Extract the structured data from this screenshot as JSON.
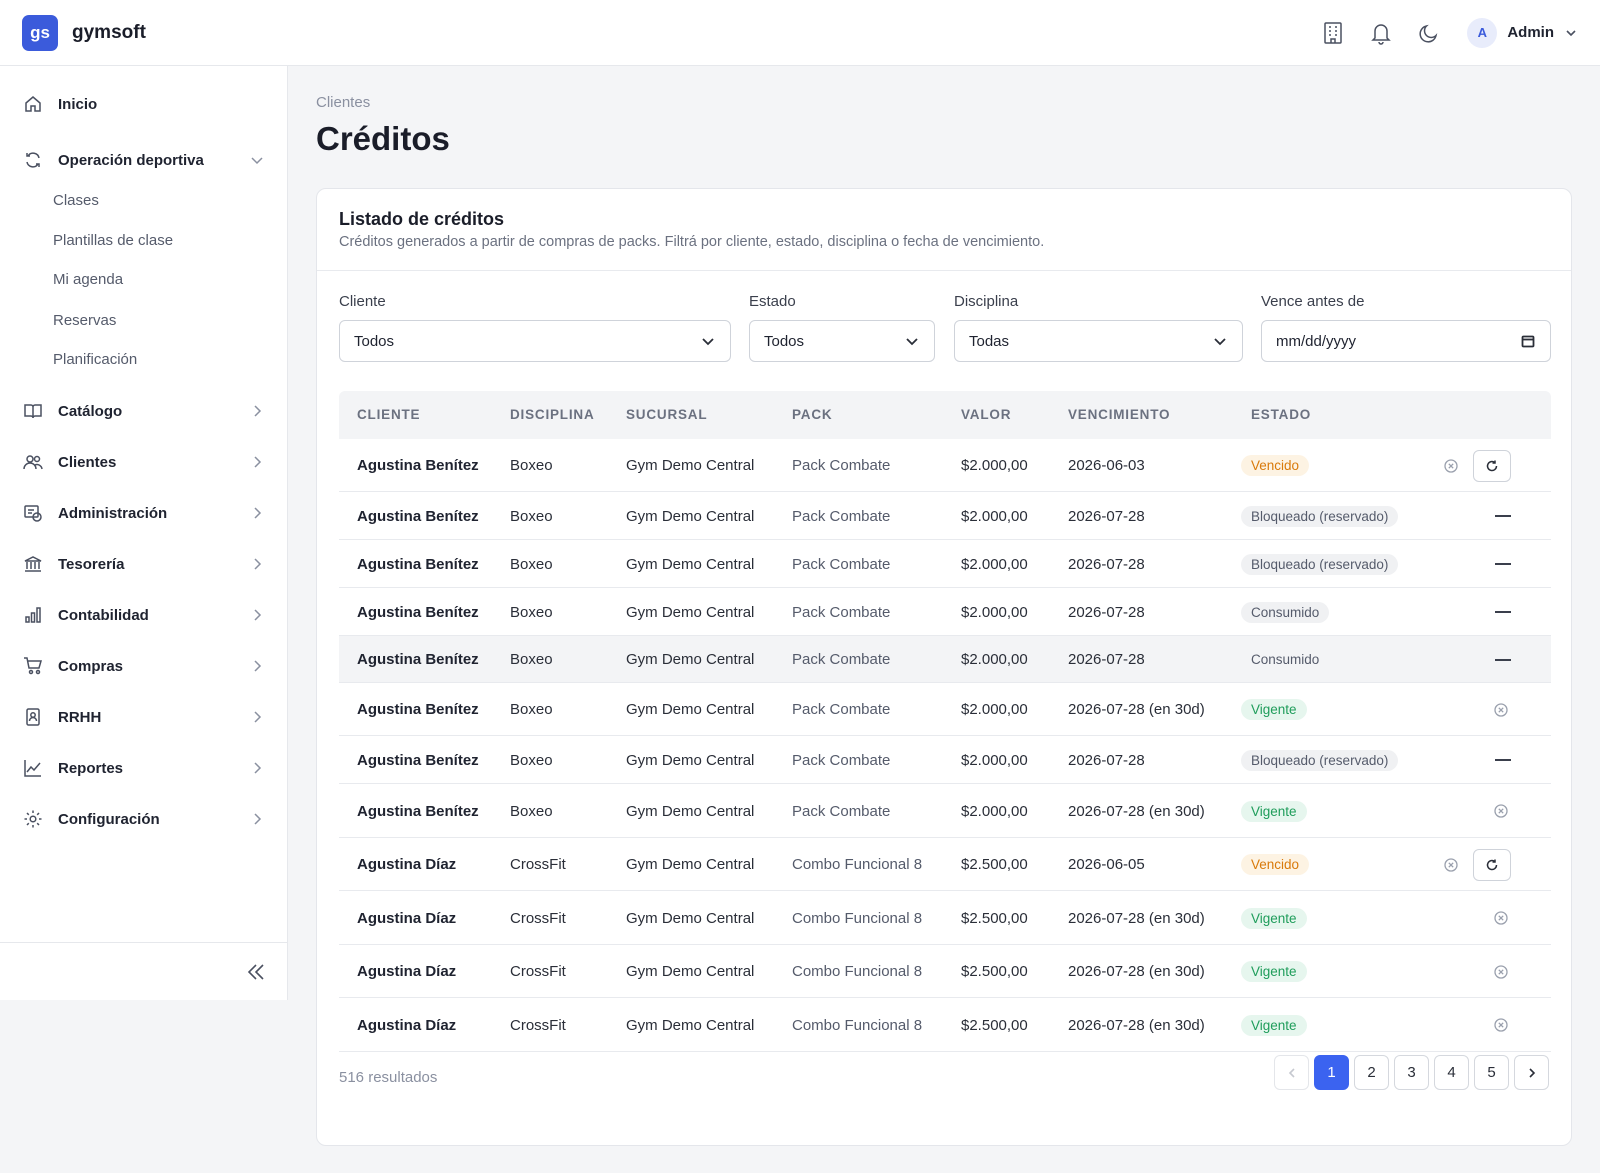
{
  "app": {
    "logo": "gs",
    "brand": "gymsoft"
  },
  "topbar": {
    "user_initial": "A",
    "user_name": "Admin",
    "icons": [
      "building-icon",
      "bell-icon",
      "moon-icon"
    ]
  },
  "sidebar": {
    "items": [
      {
        "label": "Inicio",
        "icon": "home-icon"
      },
      {
        "label": "Operación deportiva",
        "icon": "refresh-icon",
        "expanded": true,
        "children": [
          "Clases",
          "Plantillas de clase",
          "Mi agenda",
          "Reservas",
          "Planificación"
        ]
      },
      {
        "label": "Catálogo",
        "icon": "book-icon"
      },
      {
        "label": "Clientes",
        "icon": "users-icon"
      },
      {
        "label": "Administración",
        "icon": "admin-icon"
      },
      {
        "label": "Tesorería",
        "icon": "bank-icon"
      },
      {
        "label": "Contabilidad",
        "icon": "bar-chart-icon"
      },
      {
        "label": "Compras",
        "icon": "cart-icon"
      },
      {
        "label": "RRHH",
        "icon": "badge-icon"
      },
      {
        "label": "Reportes",
        "icon": "line-chart-icon"
      },
      {
        "label": "Configuración",
        "icon": "gear-icon"
      }
    ]
  },
  "page": {
    "breadcrumb": "Clientes",
    "title": "Créditos"
  },
  "card": {
    "title": "Listado de créditos",
    "subtitle": "Créditos generados a partir de compras de packs. Filtrá por cliente, estado, disciplina o fecha de vencimiento."
  },
  "filters": {
    "cliente": {
      "label": "Cliente",
      "value": "Todos"
    },
    "estado": {
      "label": "Estado",
      "value": "Todos"
    },
    "disciplina": {
      "label": "Disciplina",
      "value": "Todas"
    },
    "vence": {
      "label": "Vence antes de",
      "placeholder": "mm/dd/yyyy"
    }
  },
  "table": {
    "headers": [
      "CLIENTE",
      "DISCIPLINA",
      "SUCURSAL",
      "PACK",
      "VALOR",
      "VENCIMIENTO",
      "ESTADO"
    ],
    "rows": [
      {
        "cliente": "Agustina Benítez",
        "disciplina": "Boxeo",
        "sucursal": "Gym Demo Central",
        "pack": "Pack Combate",
        "valor": "$2.000,00",
        "vencimiento": "2026-06-03",
        "estado": "Vencido",
        "estado_type": "vencido",
        "actions": "x-reload"
      },
      {
        "cliente": "Agustina Benítez",
        "disciplina": "Boxeo",
        "sucursal": "Gym Demo Central",
        "pack": "Pack Combate",
        "valor": "$2.000,00",
        "vencimiento": "2026-07-28",
        "estado": "Bloqueado (reservado)",
        "estado_type": "bloqueado",
        "actions": "dash"
      },
      {
        "cliente": "Agustina Benítez",
        "disciplina": "Boxeo",
        "sucursal": "Gym Demo Central",
        "pack": "Pack Combate",
        "valor": "$2.000,00",
        "vencimiento": "2026-07-28",
        "estado": "Bloqueado (reservado)",
        "estado_type": "bloqueado",
        "actions": "dash"
      },
      {
        "cliente": "Agustina Benítez",
        "disciplina": "Boxeo",
        "sucursal": "Gym Demo Central",
        "pack": "Pack Combate",
        "valor": "$2.000,00",
        "vencimiento": "2026-07-28",
        "estado": "Consumido",
        "estado_type": "consumido",
        "actions": "dash"
      },
      {
        "cliente": "Agustina Benítez",
        "disciplina": "Boxeo",
        "sucursal": "Gym Demo Central",
        "pack": "Pack Combate",
        "valor": "$2.000,00",
        "vencimiento": "2026-07-28",
        "estado": "Consumido",
        "estado_type": "consumido-plain",
        "actions": "dash",
        "hover": true
      },
      {
        "cliente": "Agustina Benítez",
        "disciplina": "Boxeo",
        "sucursal": "Gym Demo Central",
        "pack": "Pack Combate",
        "valor": "$2.000,00",
        "vencimiento": "2026-07-28 (en 30d)",
        "estado": "Vigente",
        "estado_type": "vigente",
        "actions": "x"
      },
      {
        "cliente": "Agustina Benítez",
        "disciplina": "Boxeo",
        "sucursal": "Gym Demo Central",
        "pack": "Pack Combate",
        "valor": "$2.000,00",
        "vencimiento": "2026-07-28",
        "estado": "Bloqueado (reservado)",
        "estado_type": "bloqueado",
        "actions": "dash"
      },
      {
        "cliente": "Agustina Benítez",
        "disciplina": "Boxeo",
        "sucursal": "Gym Demo Central",
        "pack": "Pack Combate",
        "valor": "$2.000,00",
        "vencimiento": "2026-07-28 (en 30d)",
        "estado": "Vigente",
        "estado_type": "vigente",
        "actions": "x"
      },
      {
        "cliente": "Agustina Díaz",
        "disciplina": "CrossFit",
        "sucursal": "Gym Demo Central",
        "pack": "Combo Funcional 8",
        "valor": "$2.500,00",
        "vencimiento": "2026-06-05",
        "estado": "Vencido",
        "estado_type": "vencido",
        "actions": "x-reload"
      },
      {
        "cliente": "Agustina Díaz",
        "disciplina": "CrossFit",
        "sucursal": "Gym Demo Central",
        "pack": "Combo Funcional 8",
        "valor": "$2.500,00",
        "vencimiento": "2026-07-28 (en 30d)",
        "estado": "Vigente",
        "estado_type": "vigente",
        "actions": "x"
      },
      {
        "cliente": "Agustina Díaz",
        "disciplina": "CrossFit",
        "sucursal": "Gym Demo Central",
        "pack": "Combo Funcional 8",
        "valor": "$2.500,00",
        "vencimiento": "2026-07-28 (en 30d)",
        "estado": "Vigente",
        "estado_type": "vigente",
        "actions": "x"
      },
      {
        "cliente": "Agustina Díaz",
        "disciplina": "CrossFit",
        "sucursal": "Gym Demo Central",
        "pack": "Combo Funcional 8",
        "valor": "$2.500,00",
        "vencimiento": "2026-07-28 (en 30d)",
        "estado": "Vigente",
        "estado_type": "vigente",
        "actions": "x"
      }
    ]
  },
  "footer": {
    "results": "516 resultados",
    "pages": [
      "1",
      "2",
      "3",
      "4",
      "5"
    ],
    "current_page": "1"
  }
}
